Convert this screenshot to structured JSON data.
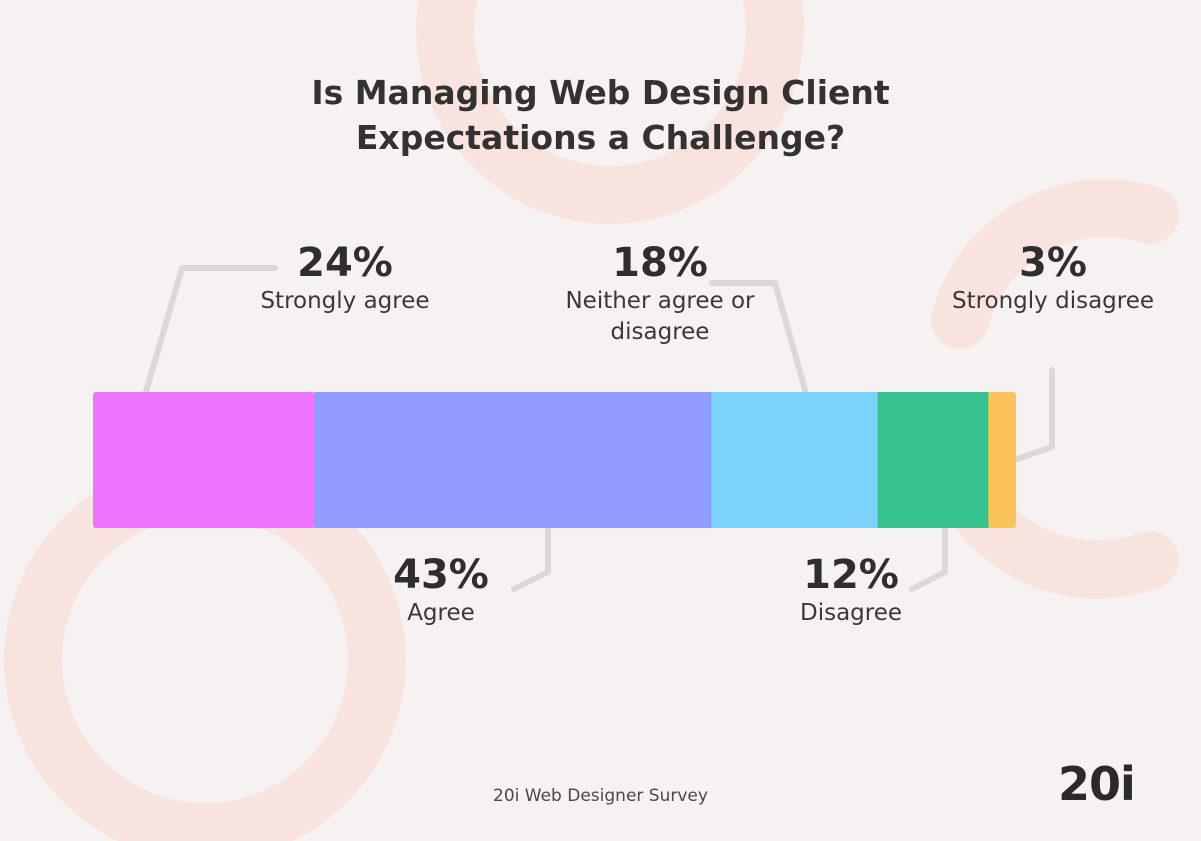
{
  "title_line1": "Is Managing Web Design Client",
  "title_line2": "Expectations a Challenge?",
  "source": "20i Web Designer Survey",
  "logo": "20i",
  "chart_data": {
    "type": "bar",
    "orientation": "horizontal-stacked",
    "title": "Is Managing Web Design Client Expectations a Challenge?",
    "categories": [
      "Strongly agree",
      "Agree",
      "Neither agree or disagree",
      "Disagree",
      "Strongly disagree"
    ],
    "values": [
      24,
      43,
      18,
      12,
      3
    ],
    "value_labels": [
      "24%",
      "43%",
      "18%",
      "12%",
      "3%"
    ],
    "colors": [
      "#ee74ff",
      "#909cff",
      "#7ad2fd",
      "#38c28f",
      "#fac45a"
    ],
    "unit": "%",
    "legend": "none",
    "grid": false
  }
}
